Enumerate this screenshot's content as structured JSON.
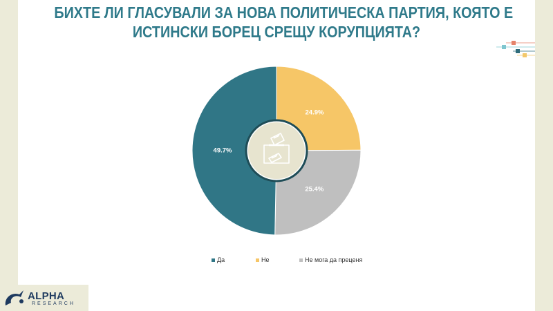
{
  "title_lines": [
    "БИХТЕ ЛИ ГЛАСУВАЛИ ЗА НОВА ПОЛИТИЧЕСКА ПАРТИЯ, КОЯТО Е",
    "ИСТИНСКИ БОРЕЦ СРЕЩУ КОРУПЦИЯТА?"
  ],
  "colors": {
    "title": "#2f7a8a",
    "frame": "#ecebd9",
    "center_icon": "#e7e4cf",
    "center_ring": "#1f4d57"
  },
  "chart_data": {
    "type": "pie",
    "categories": [
      "Да",
      "Не",
      "Не мога да преценя"
    ],
    "values": [
      49.7,
      24.9,
      25.4
    ],
    "labels": [
      "49.7%",
      "24.9%",
      "25.4%"
    ],
    "colors": [
      "#307686",
      "#f6c667",
      "#bfbfbf"
    ],
    "legend_position": "bottom",
    "center_icon": "ballot-box-icon"
  },
  "logo": {
    "name": "ALPHA",
    "sub": "RESEARCH"
  }
}
